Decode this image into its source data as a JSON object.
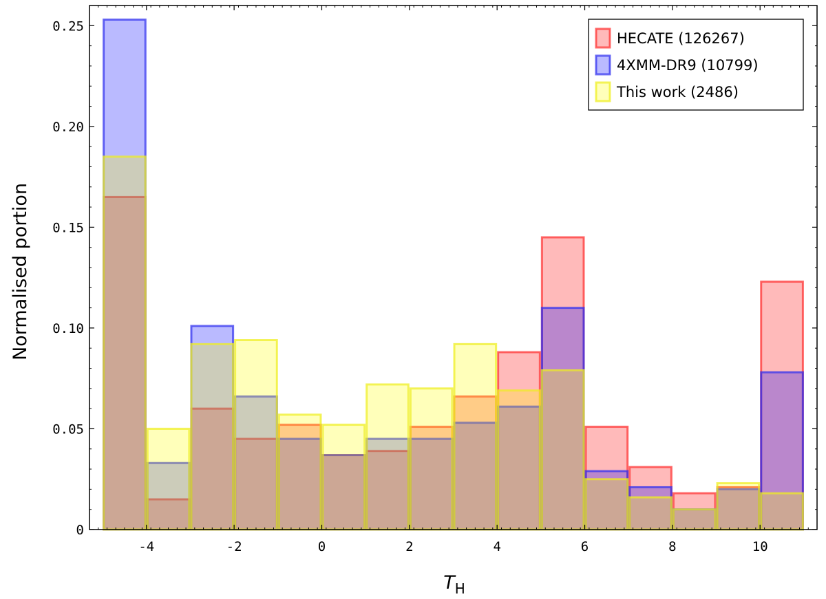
{
  "chart_data": {
    "type": "bar",
    "title": "",
    "xlabel": "T",
    "xlabel_sub": "H",
    "ylabel": "Normalised portion",
    "xlim": [
      -5.3,
      11.3
    ],
    "ylim": [
      0,
      0.26
    ],
    "grid": false,
    "legend_position": "top-right",
    "bin_edges": [
      -5,
      -4,
      -3,
      -2,
      -1,
      0,
      1,
      2,
      3,
      4,
      5,
      6,
      7,
      8,
      9,
      10,
      11
    ],
    "xticks": [
      -4,
      -2,
      0,
      2,
      4,
      6,
      8,
      10
    ],
    "xtick_labels": [
      "-4",
      "-2",
      "0",
      "2",
      "4",
      "6",
      "8",
      "10"
    ],
    "yticks": [
      0,
      0.05,
      0.1,
      0.15,
      0.2,
      0.25
    ],
    "ytick_labels": [
      "0",
      "0.05",
      "0.10",
      "0.15",
      "0.20",
      "0.25"
    ],
    "series": [
      {
        "name": "HECATE (126267)",
        "fill": "#ff0000",
        "stroke": "#ff3030",
        "values": [
          0.165,
          0.015,
          0.06,
          0.045,
          0.052,
          0.037,
          0.039,
          0.051,
          0.066,
          0.088,
          0.145,
          0.051,
          0.031,
          0.018,
          0.021,
          0.123
        ]
      },
      {
        "name": "4XMM-DR9 (10799)",
        "fill": "#0000ff",
        "stroke": "#3030ee",
        "values": [
          0.253,
          0.033,
          0.101,
          0.066,
          0.045,
          0.037,
          0.045,
          0.045,
          0.053,
          0.061,
          0.11,
          0.029,
          0.021,
          0.01,
          0.02,
          0.078
        ]
      },
      {
        "name": "This work (2486)",
        "fill": "#ffff00",
        "stroke": "#eeee20",
        "values": [
          0.185,
          0.05,
          0.092,
          0.094,
          0.057,
          0.052,
          0.072,
          0.07,
          0.092,
          0.069,
          0.079,
          0.025,
          0.016,
          0.01,
          0.023,
          0.018
        ]
      }
    ]
  }
}
